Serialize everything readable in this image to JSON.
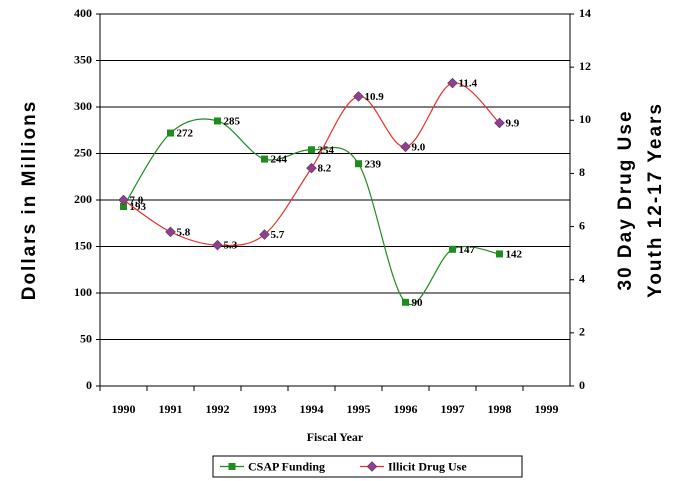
{
  "chart_data": {
    "type": "line",
    "x_label": "Fiscal Year",
    "y_label": "Dollars in Millions",
    "y2_label": [
      "30 Day Drug Use",
      "Youth 12-17 Years"
    ],
    "categories": [
      "1990",
      "1991",
      "1992",
      "1993",
      "1994",
      "1995",
      "1996",
      "1997",
      "1998",
      "1999"
    ],
    "series": [
      {
        "name": "CSAP Funding",
        "color": "#1f8c1f",
        "marker": "square",
        "marker_color": "#1f8c1f",
        "values": [
          193,
          272,
          285,
          244,
          254,
          239,
          90,
          147,
          142,
          null
        ]
      },
      {
        "name": "Illicit Drug Use",
        "color": "#e8302a",
        "marker": "diamond",
        "marker_color": "#8e3f8e",
        "axis": "y2",
        "values": [
          7.0,
          5.8,
          5.3,
          5.7,
          8.2,
          10.9,
          9.0,
          11.4,
          9.9,
          null
        ],
        "value_labels": [
          "7.0",
          "5.8",
          "5.3",
          "5.7",
          "8.2",
          "10.9",
          "9.0",
          "11.4",
          "9.9",
          null
        ]
      }
    ],
    "ylim": [
      0,
      400
    ],
    "yticks": [
      0,
      50,
      100,
      150,
      200,
      250,
      300,
      350,
      400
    ],
    "y2lim": [
      0,
      14
    ],
    "y2ticks": [
      0,
      2,
      4,
      6,
      8,
      10,
      12,
      14
    ],
    "grid": true,
    "legend": "bottom"
  }
}
